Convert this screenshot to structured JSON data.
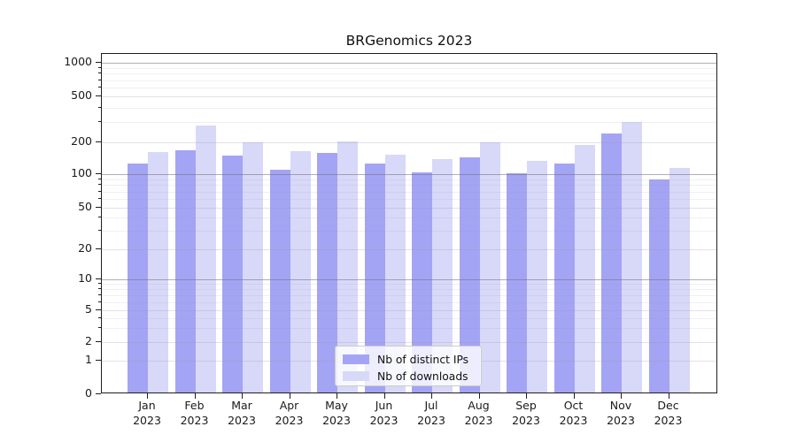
{
  "title": "BRGenomics 2023",
  "chart_data": {
    "type": "bar",
    "title": "BRGenomics 2023",
    "categories": [
      "Jan 2023",
      "Feb 2023",
      "Mar 2023",
      "Apr 2023",
      "May 2023",
      "Jun 2023",
      "Jul 2023",
      "Aug 2023",
      "Sep 2023",
      "Oct 2023",
      "Nov 2023",
      "Dec 2023"
    ],
    "series": [
      {
        "name": "Nb of distinct IPs",
        "color": "#a4a4f4",
        "values": [
          126,
          167,
          149,
          111,
          158,
          125,
          103,
          144,
          102,
          127,
          240,
          90
        ]
      },
      {
        "name": "Nb of downloads",
        "color": "#d8d8f9",
        "values": [
          162,
          280,
          201,
          165,
          205,
          153,
          138,
          200,
          134,
          188,
          300,
          114
        ]
      }
    ],
    "xlabel": "",
    "ylabel": "",
    "yscale": "symlog",
    "ylim": [
      0,
      1100
    ],
    "y_ticks": [
      0,
      1,
      2,
      5,
      10,
      20,
      50,
      100,
      200,
      500,
      1000
    ],
    "y_minor_ticks": [
      3,
      4,
      6,
      7,
      8,
      9,
      30,
      40,
      60,
      70,
      80,
      90,
      300,
      400,
      600,
      700,
      800,
      900
    ],
    "grid": "on",
    "legend_position": "lower center"
  }
}
